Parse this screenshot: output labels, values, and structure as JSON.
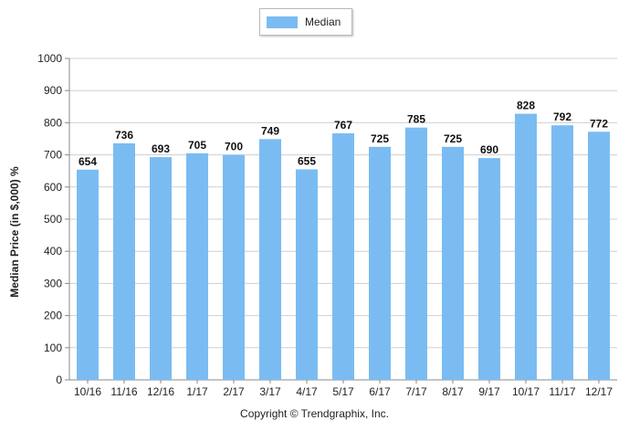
{
  "chart_data": {
    "type": "bar",
    "categories": [
      "10/16",
      "11/16",
      "12/16",
      "1/17",
      "2/17",
      "3/17",
      "4/17",
      "5/17",
      "6/17",
      "7/17",
      "8/17",
      "9/17",
      "10/17",
      "11/17",
      "12/17"
    ],
    "series": [
      {
        "name": "Median",
        "values": [
          654,
          736,
          693,
          705,
          700,
          749,
          655,
          767,
          725,
          785,
          725,
          690,
          828,
          792,
          772
        ]
      }
    ],
    "ylabel": "Median Price (in $,000) %",
    "xlabel": "",
    "ylim": [
      0,
      1000
    ],
    "yticks": [
      0,
      100,
      200,
      300,
      400,
      500,
      600,
      700,
      800,
      900,
      1000
    ],
    "grid": true,
    "legend_position": "top-center",
    "bar_color": "#7abcf2",
    "grid_color": "#cfcfcf"
  },
  "footer": {
    "copyright": "Copyright © Trendgraphix, Inc."
  }
}
